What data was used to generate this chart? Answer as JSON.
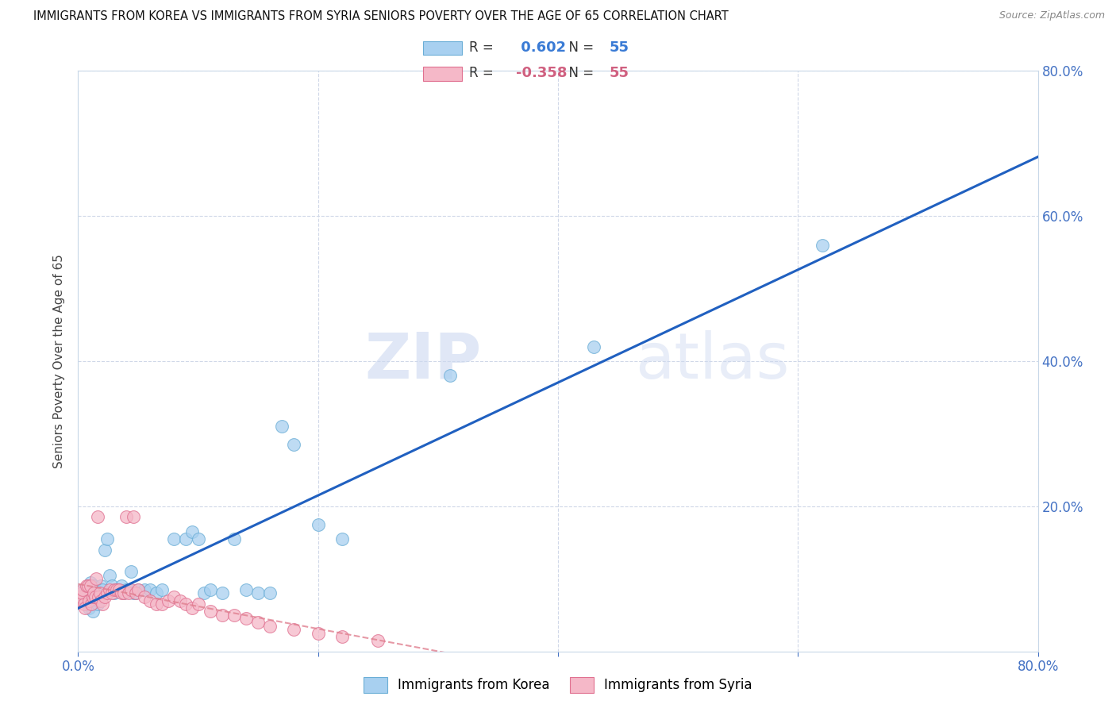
{
  "title": "IMMIGRANTS FROM KOREA VS IMMIGRANTS FROM SYRIA SENIORS POVERTY OVER THE AGE OF 65 CORRELATION CHART",
  "source": "Source: ZipAtlas.com",
  "ylabel": "Seniors Poverty Over the Age of 65",
  "xlim": [
    0,
    0.8
  ],
  "ylim": [
    0,
    0.8
  ],
  "xtick_labels": [
    "0.0%",
    "",
    "",
    "",
    "80.0%"
  ],
  "xtick_vals": [
    0.0,
    0.2,
    0.4,
    0.6,
    0.8
  ],
  "ytick_labels": [
    "20.0%",
    "40.0%",
    "60.0%",
    "80.0%"
  ],
  "ytick_vals": [
    0.2,
    0.4,
    0.6,
    0.8
  ],
  "korea_R": 0.602,
  "korea_N": 55,
  "syria_R": -0.358,
  "syria_N": 55,
  "korea_color": "#a8d0f0",
  "korea_edge": "#6baed6",
  "syria_color": "#f5b8c8",
  "syria_edge": "#e07090",
  "trendline_korea_color": "#2060c0",
  "trendline_syria_color": "#e08090",
  "watermark_zip": "ZIP",
  "watermark_atlas": "atlas",
  "background_color": "#ffffff",
  "grid_color": "#d0d8e8",
  "korea_x": [
    0.003,
    0.004,
    0.005,
    0.006,
    0.007,
    0.008,
    0.009,
    0.01,
    0.011,
    0.012,
    0.013,
    0.014,
    0.015,
    0.016,
    0.017,
    0.018,
    0.019,
    0.02,
    0.022,
    0.024,
    0.026,
    0.028,
    0.03,
    0.032,
    0.034,
    0.036,
    0.038,
    0.04,
    0.042,
    0.044,
    0.046,
    0.048,
    0.05,
    0.055,
    0.06,
    0.065,
    0.07,
    0.08,
    0.09,
    0.095,
    0.1,
    0.105,
    0.11,
    0.12,
    0.13,
    0.14,
    0.15,
    0.16,
    0.17,
    0.18,
    0.2,
    0.22,
    0.31,
    0.43,
    0.62
  ],
  "korea_y": [
    0.075,
    0.08,
    0.085,
    0.07,
    0.08,
    0.065,
    0.06,
    0.095,
    0.065,
    0.055,
    0.09,
    0.075,
    0.08,
    0.065,
    0.07,
    0.08,
    0.09,
    0.085,
    0.14,
    0.155,
    0.105,
    0.09,
    0.08,
    0.085,
    0.085,
    0.09,
    0.08,
    0.085,
    0.085,
    0.11,
    0.08,
    0.08,
    0.085,
    0.085,
    0.085,
    0.08,
    0.085,
    0.155,
    0.155,
    0.165,
    0.155,
    0.08,
    0.085,
    0.08,
    0.155,
    0.085,
    0.08,
    0.08,
    0.31,
    0.285,
    0.175,
    0.155,
    0.38,
    0.42,
    0.56
  ],
  "syria_x": [
    0.001,
    0.002,
    0.003,
    0.004,
    0.005,
    0.006,
    0.007,
    0.008,
    0.009,
    0.01,
    0.011,
    0.012,
    0.013,
    0.014,
    0.015,
    0.016,
    0.017,
    0.018,
    0.019,
    0.02,
    0.022,
    0.024,
    0.026,
    0.028,
    0.03,
    0.032,
    0.034,
    0.036,
    0.038,
    0.04,
    0.042,
    0.044,
    0.046,
    0.048,
    0.05,
    0.055,
    0.06,
    0.065,
    0.07,
    0.075,
    0.08,
    0.085,
    0.09,
    0.095,
    0.1,
    0.11,
    0.12,
    0.13,
    0.14,
    0.15,
    0.16,
    0.18,
    0.2,
    0.22,
    0.25
  ],
  "syria_y": [
    0.07,
    0.075,
    0.08,
    0.085,
    0.065,
    0.06,
    0.09,
    0.09,
    0.07,
    0.09,
    0.065,
    0.075,
    0.08,
    0.075,
    0.1,
    0.185,
    0.075,
    0.08,
    0.07,
    0.065,
    0.075,
    0.08,
    0.085,
    0.08,
    0.085,
    0.085,
    0.085,
    0.08,
    0.08,
    0.185,
    0.08,
    0.085,
    0.185,
    0.08,
    0.085,
    0.075,
    0.07,
    0.065,
    0.065,
    0.07,
    0.075,
    0.07,
    0.065,
    0.06,
    0.065,
    0.055,
    0.05,
    0.05,
    0.045,
    0.04,
    0.035,
    0.03,
    0.025,
    0.02,
    0.015
  ]
}
